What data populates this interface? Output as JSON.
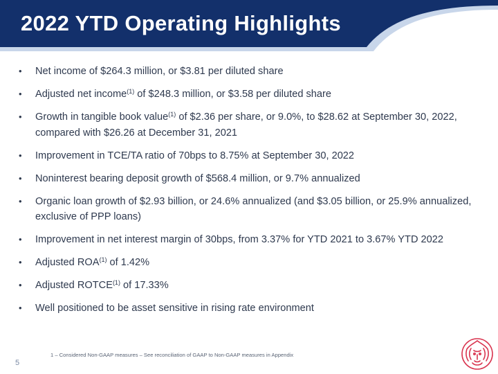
{
  "header": {
    "title": "2022 YTD Operating Highlights",
    "banner_color": "#13306b",
    "accent_color": "#c8d6ea"
  },
  "bullets": [
    {
      "parts": [
        {
          "text": "Net income of $264.3 million, or $3.81 per diluted share"
        }
      ]
    },
    {
      "parts": [
        {
          "text": "Adjusted net income"
        },
        {
          "sup": "(1)"
        },
        {
          "text": " of $248.3 million, or $3.58 per diluted share"
        }
      ]
    },
    {
      "parts": [
        {
          "text": "Growth in tangible book value"
        },
        {
          "sup": "(1)"
        },
        {
          "text": " of $2.36 per share, or 9.0%, to $28.62 at September 30, 2022, compared with $26.26 at December 31, 2021"
        }
      ]
    },
    {
      "parts": [
        {
          "text": "Improvement in TCE/TA ratio of 70bps to 8.75% at September 30, 2022"
        }
      ]
    },
    {
      "parts": [
        {
          "text": "Noninterest bearing deposit growth of $568.4 million, or 9.7% annualized"
        }
      ]
    },
    {
      "parts": [
        {
          "text": "Organic loan growth of $2.93 billion, or 24.6% annualized (and $3.05 billion, or 25.9% annualized, exclusive of PPP loans)"
        }
      ]
    },
    {
      "parts": [
        {
          "text": "Improvement in net interest margin of 30bps, from 3.37% for YTD 2021 to 3.67% YTD 2022"
        }
      ]
    },
    {
      "parts": [
        {
          "text": "Adjusted ROA"
        },
        {
          "sup": "(1)"
        },
        {
          "text": " of 1.42%"
        }
      ]
    },
    {
      "parts": [
        {
          "text": "Adjusted ROTCE"
        },
        {
          "sup": "(1)"
        },
        {
          "text": " of 17.33%"
        }
      ]
    },
    {
      "parts": [
        {
          "text": "Well positioned to be asset sensitive in rising rate environment"
        }
      ]
    }
  ],
  "bullet_symbol": "•",
  "footnote": "1 – Considered Non-GAAP measures – See reconciliation of GAAP to Non-GAAP measures in Appendix",
  "page_number": "5",
  "logo": {
    "icon": "lion-head-icon",
    "color": "#d9344f"
  }
}
